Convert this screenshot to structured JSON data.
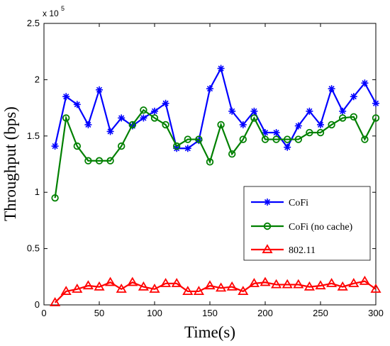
{
  "chart_data": {
    "type": "line",
    "xlabel": "Time(s)",
    "ylabel": "Throughput (bps)",
    "y_scale_label": "x 10",
    "y_scale_exponent": "5",
    "xlim": [
      0,
      300
    ],
    "ylim": [
      0,
      2.5
    ],
    "x_ticks": [
      0,
      50,
      100,
      150,
      200,
      250,
      300
    ],
    "x_tick_labels": [
      "0",
      "50",
      "100",
      "150",
      "200",
      "250",
      "300"
    ],
    "y_ticks": [
      0,
      0.5,
      1,
      1.5,
      2,
      2.5
    ],
    "y_tick_labels": [
      "0",
      "0.5",
      "1",
      "1.5",
      "2",
      "2.5"
    ],
    "grid": false,
    "legend_position": "lower-right",
    "x": [
      10,
      20,
      30,
      40,
      50,
      60,
      70,
      80,
      90,
      100,
      110,
      120,
      130,
      140,
      150,
      160,
      170,
      180,
      190,
      200,
      210,
      220,
      230,
      240,
      250,
      260,
      270,
      280,
      290,
      300
    ],
    "series": [
      {
        "name": "CoFi",
        "color": "#0000ff",
        "marker": "star",
        "values": [
          1.41,
          1.85,
          1.78,
          1.6,
          1.91,
          1.54,
          1.66,
          1.59,
          1.66,
          1.72,
          1.79,
          1.39,
          1.39,
          1.46,
          1.92,
          2.1,
          1.72,
          1.6,
          1.72,
          1.53,
          1.53,
          1.4,
          1.59,
          1.72,
          1.6,
          1.92,
          1.72,
          1.85,
          1.97,
          1.79
        ]
      },
      {
        "name": "CoFi (no cache)",
        "color": "#008000",
        "marker": "circle",
        "values": [
          0.95,
          1.66,
          1.41,
          1.28,
          1.28,
          1.28,
          1.41,
          1.6,
          1.73,
          1.66,
          1.6,
          1.41,
          1.47,
          1.47,
          1.27,
          1.6,
          1.34,
          1.47,
          1.66,
          1.47,
          1.47,
          1.47,
          1.47,
          1.53,
          1.53,
          1.6,
          1.66,
          1.67,
          1.47,
          1.66
        ]
      },
      {
        "name": "802.11",
        "color": "#ff0000",
        "marker": "triangle",
        "values": [
          0.02,
          0.12,
          0.14,
          0.17,
          0.16,
          0.2,
          0.14,
          0.2,
          0.16,
          0.14,
          0.19,
          0.19,
          0.12,
          0.12,
          0.17,
          0.15,
          0.16,
          0.12,
          0.19,
          0.2,
          0.18,
          0.18,
          0.18,
          0.16,
          0.17,
          0.19,
          0.16,
          0.19,
          0.21,
          0.14
        ]
      }
    ]
  }
}
